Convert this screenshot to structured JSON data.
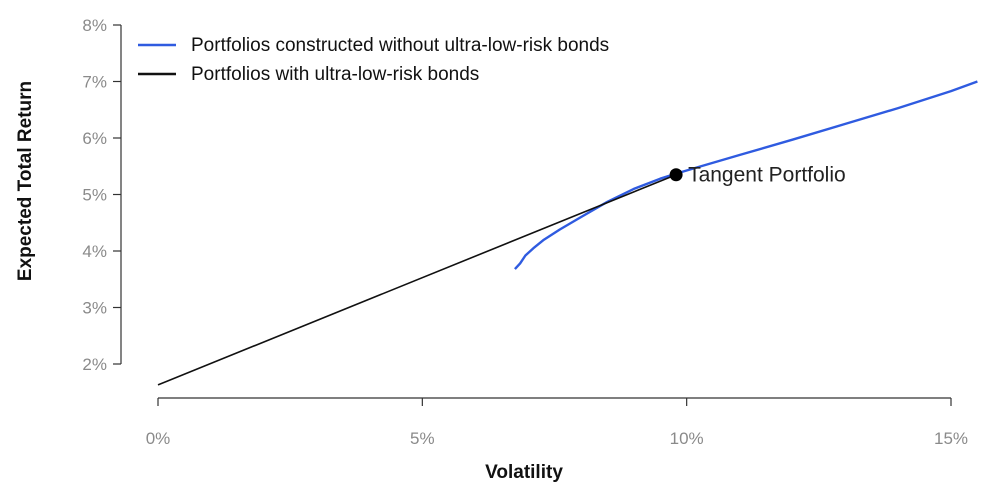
{
  "chart_data": {
    "type": "line",
    "xlabel": "Volatility",
    "ylabel": "Expected Total Return",
    "xlim": [
      0,
      15.5
    ],
    "ylim": [
      1.6,
      8.0
    ],
    "x_ticks": [
      0,
      5,
      10,
      15
    ],
    "x_tick_labels": [
      "0%",
      "5%",
      "10%",
      "15%"
    ],
    "y_ticks": [
      2,
      3,
      4,
      5,
      6,
      7,
      8
    ],
    "y_tick_labels": [
      "2%",
      "3%",
      "4%",
      "5%",
      "6%",
      "7%",
      "8%"
    ],
    "grid": false,
    "legend_position": "top-left",
    "series": [
      {
        "name": "Portfolios constructed without ultra-low-risk bonds",
        "color": "#2f5be0",
        "points": [
          [
            6.75,
            3.68
          ],
          [
            6.85,
            3.78
          ],
          [
            6.95,
            3.92
          ],
          [
            7.1,
            4.05
          ],
          [
            7.3,
            4.2
          ],
          [
            7.6,
            4.38
          ],
          [
            8.0,
            4.6
          ],
          [
            8.5,
            4.87
          ],
          [
            9.0,
            5.1
          ],
          [
            9.5,
            5.28
          ],
          [
            9.8,
            5.37
          ],
          [
            10.2,
            5.48
          ],
          [
            11.0,
            5.7
          ],
          [
            12.0,
            5.97
          ],
          [
            13.0,
            6.25
          ],
          [
            14.0,
            6.53
          ],
          [
            15.0,
            6.83
          ],
          [
            15.5,
            7.0
          ]
        ]
      },
      {
        "name": "Portfolios with ultra-low-risk bonds",
        "color": "#111111",
        "points": [
          [
            0,
            1.63
          ],
          [
            9.8,
            5.35
          ]
        ]
      }
    ],
    "annotations": [
      {
        "label": "Tangent Portfolio",
        "x": 9.8,
        "y": 5.35
      }
    ]
  }
}
